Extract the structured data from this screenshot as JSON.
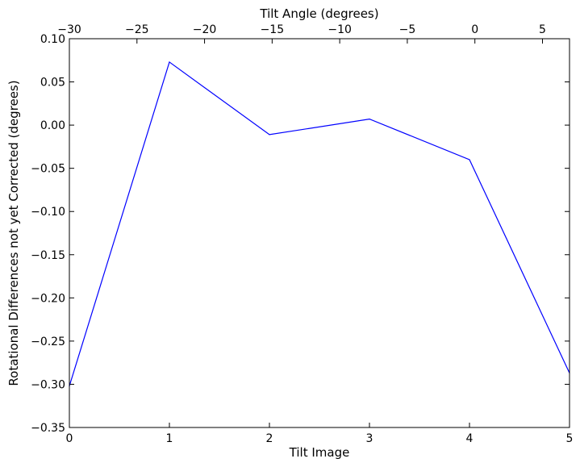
{
  "chart_data": {
    "type": "line",
    "xlabel": "Tilt Image",
    "ylabel": "Rotational Differences not yet Corrected (degrees)",
    "top_xlabel": "Tilt Angle (degrees)",
    "xlim": [
      0,
      5
    ],
    "ylim": [
      -0.35,
      0.1
    ],
    "top_xlim": [
      -30,
      7
    ],
    "x_ticks": [
      0,
      1,
      2,
      3,
      4,
      5
    ],
    "x_tick_labels": [
      "0",
      "1",
      "2",
      "3",
      "4",
      "5"
    ],
    "y_ticks": [
      0.1,
      0.05,
      0.0,
      -0.05,
      -0.1,
      -0.15,
      -0.2,
      -0.25,
      -0.3,
      -0.35
    ],
    "y_tick_labels": [
      "0.10",
      "0.05",
      "0.00",
      "−0.05",
      "−0.10",
      "−0.15",
      "−0.20",
      "−0.25",
      "−0.30",
      "−0.35"
    ],
    "top_x_ticks": [
      -30,
      -25,
      -20,
      -15,
      -10,
      -5,
      0,
      5
    ],
    "top_x_tick_labels": [
      "−30",
      "−25",
      "−20",
      "−15",
      "−10",
      "−5",
      "0",
      "5"
    ],
    "grid": false,
    "series": [
      {
        "color": "#0000ff",
        "x": [
          0,
          1,
          2,
          3,
          4,
          5
        ],
        "y": [
          -0.302,
          0.073,
          -0.011,
          0.007,
          -0.04,
          -0.287
        ]
      }
    ]
  }
}
